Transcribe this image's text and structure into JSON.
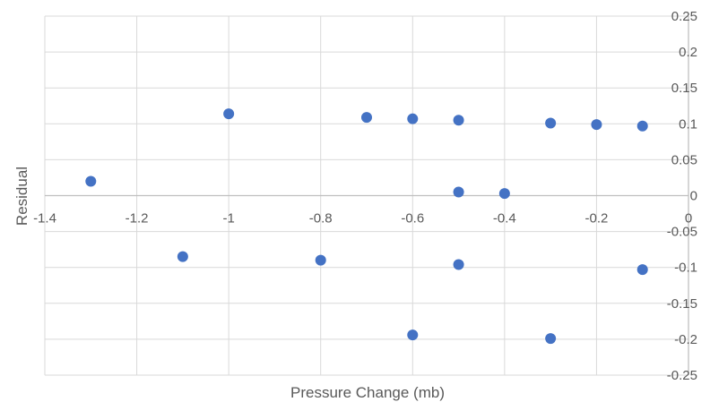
{
  "chart_data": {
    "type": "scatter",
    "xlabel": "Pressure Change (mb)",
    "ylabel": "Residual",
    "xlim": [
      -1.4,
      0
    ],
    "ylim": [
      -0.25,
      0.25
    ],
    "x_ticks": [
      -1.4,
      -1.2,
      -1,
      -0.8,
      -0.6,
      -0.4,
      -0.2,
      0
    ],
    "y_ticks": [
      0.25,
      0.2,
      0.15,
      0.1,
      0.05,
      0,
      -0.05,
      -0.1,
      -0.15,
      -0.2,
      -0.25
    ],
    "x_tick_labels": [
      "-1.4",
      "-1.2",
      "-1",
      "-0.8",
      "-0.6",
      "-0.4",
      "-0.2",
      "0"
    ],
    "y_tick_labels": [
      "0.25",
      "0.2",
      "0.15",
      "0.1",
      "0.05",
      "0",
      "-0.05",
      "-0.1",
      "-0.15",
      "-0.2",
      "-0.25"
    ],
    "grid": true,
    "marker_color": "#4472C4",
    "points": [
      {
        "x": -1.3,
        "y": 0.02
      },
      {
        "x": -1.1,
        "y": -0.085
      },
      {
        "x": -1.0,
        "y": 0.114
      },
      {
        "x": -0.8,
        "y": -0.09
      },
      {
        "x": -0.7,
        "y": 0.109
      },
      {
        "x": -0.6,
        "y": 0.107
      },
      {
        "x": -0.6,
        "y": -0.194
      },
      {
        "x": -0.5,
        "y": 0.105
      },
      {
        "x": -0.5,
        "y": 0.005
      },
      {
        "x": -0.5,
        "y": -0.096
      },
      {
        "x": -0.4,
        "y": 0.003
      },
      {
        "x": -0.3,
        "y": 0.101
      },
      {
        "x": -0.3,
        "y": -0.199
      },
      {
        "x": -0.2,
        "y": 0.099
      },
      {
        "x": -0.1,
        "y": 0.097
      },
      {
        "x": -0.1,
        "y": -0.103
      }
    ]
  }
}
